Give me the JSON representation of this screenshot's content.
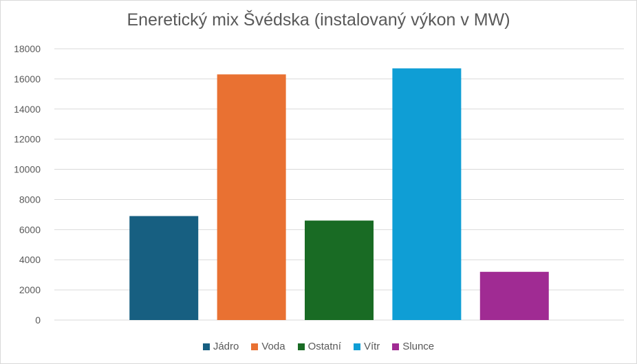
{
  "chart_data": {
    "type": "bar",
    "title": "Eneretický mix Švédska (instalovaný výkon v MW)",
    "xlabel": "",
    "ylabel": "",
    "categories": [
      "Jádro",
      "Voda",
      "Ostatní",
      "Vítr",
      "Slunce"
    ],
    "values": [
      6900,
      16300,
      6600,
      16700,
      3200
    ],
    "colors": [
      "#175F81",
      "#E97132",
      "#196B24",
      "#0F9ED5",
      "#A02B93"
    ],
    "ylim": [
      0,
      18000
    ],
    "yticks": [
      "0",
      "2000",
      "4000",
      "6000",
      "8000",
      "10000",
      "12000",
      "14000",
      "16000",
      "18000"
    ],
    "grid": true,
    "legend_position": "bottom",
    "legend": [
      "Jádro",
      "Voda",
      "Ostatní",
      "Vítr",
      "Slunce"
    ]
  }
}
